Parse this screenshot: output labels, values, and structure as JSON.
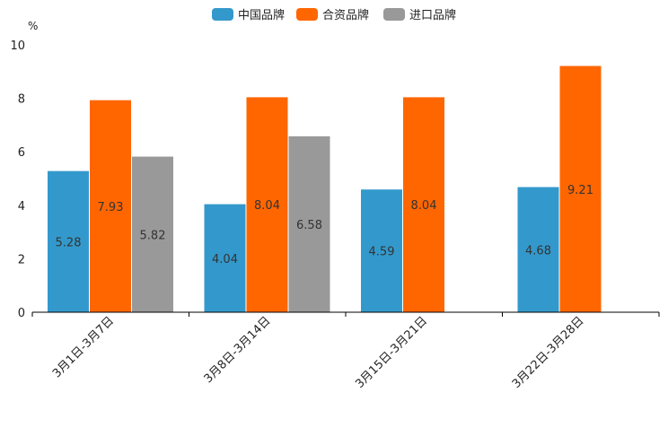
{
  "chart_data": {
    "type": "bar",
    "title": "",
    "xlabel": "",
    "ylabel": "",
    "unit": "%",
    "ylim": [
      0,
      10
    ],
    "yticks": [
      0,
      2,
      4,
      6,
      8,
      10
    ],
    "grid": false,
    "legend_position": "top-center",
    "categories": [
      "3月1日-3月7日",
      "3月8日-3月14日",
      "3月15日-3月21日",
      "3月22日-3月28日"
    ],
    "series": [
      {
        "name": "中国品牌",
        "color": "#3399cc",
        "values": [
          5.28,
          4.04,
          4.59,
          4.68
        ]
      },
      {
        "name": "合资品牌",
        "color": "#ff6600",
        "values": [
          7.93,
          8.04,
          8.04,
          9.21
        ]
      },
      {
        "name": "进口品牌",
        "color": "#999999",
        "values": [
          5.82,
          6.58,
          null,
          null
        ]
      }
    ]
  }
}
